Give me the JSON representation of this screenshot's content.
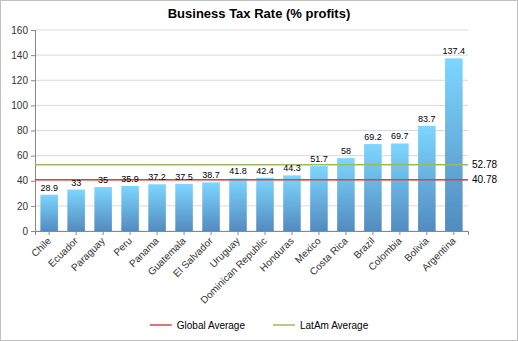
{
  "chart_data": {
    "type": "bar",
    "title": "Business Tax Rate (% profits)",
    "categories": [
      "Chile",
      "Ecuador",
      "Paraguay",
      "Peru",
      "Panama",
      "Guatemala",
      "El Salvador",
      "Uruguay",
      "Dominican Republic",
      "Honduras",
      "Mexico",
      "Costa Rica",
      "Brazil",
      "Colombia",
      "Bolivia",
      "Argentina"
    ],
    "values": [
      28.9,
      33,
      35,
      35.9,
      37.2,
      37.5,
      38.7,
      41.8,
      42.4,
      44.3,
      51.7,
      58,
      69.2,
      69.7,
      83.7,
      137.4
    ],
    "color": "#5b9bd5",
    "ylim": [
      0,
      160
    ],
    "yticks": [
      0,
      20,
      40,
      60,
      80,
      100,
      120,
      140,
      160
    ],
    "grid": true,
    "data_labels": true,
    "legend": "bottom",
    "reference_lines": [
      {
        "name": "Global Average",
        "value": 40.78,
        "color": "#d9443f"
      },
      {
        "name": "LatAm Average",
        "value": 52.78,
        "color": "#9bbb59"
      }
    ]
  }
}
